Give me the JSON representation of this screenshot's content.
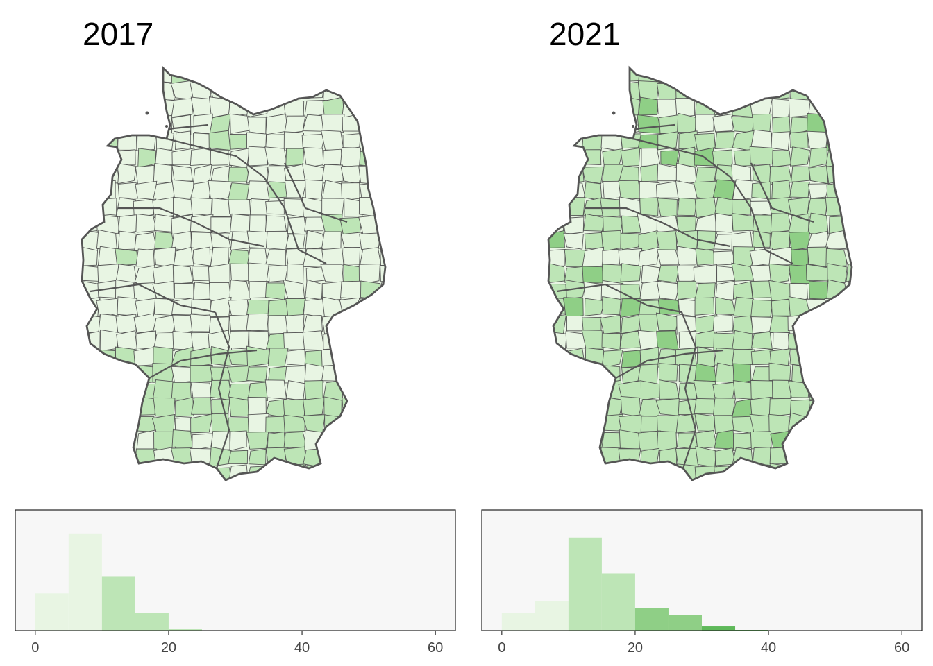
{
  "panels": [
    {
      "title": "2017",
      "chart_data": {
        "type": "bar",
        "bin_edges": [
          0,
          5,
          10,
          15,
          20,
          25
        ],
        "values": [
          54,
          140,
          79,
          26,
          3
        ],
        "colors": [
          "#e8f5e3",
          "#e8f5e3",
          "#bde5b6",
          "#bde5b6",
          "#bde5b6"
        ],
        "xlim": [
          -3,
          63
        ],
        "ylim": [
          0,
          175
        ],
        "xticks": [
          0,
          20,
          40,
          60
        ],
        "xlabel": "",
        "ylabel": ""
      }
    },
    {
      "title": "2021",
      "chart_data": {
        "type": "bar",
        "bin_edges": [
          0,
          5,
          10,
          15,
          20,
          25,
          30,
          35,
          40
        ],
        "values": [
          26,
          43,
          135,
          83,
          33,
          23,
          6,
          1
        ],
        "colors": [
          "#e8f5e3",
          "#e8f5e3",
          "#bde5b6",
          "#bde5b6",
          "#8fcf86",
          "#8fcf86",
          "#5fb95a",
          "#5fb95a"
        ],
        "xlim": [
          -3,
          63
        ],
        "ylim": [
          0,
          175
        ],
        "xticks": [
          0,
          20,
          40,
          60
        ],
        "xlabel": "",
        "ylabel": ""
      }
    }
  ],
  "map": {
    "outline_color": "#555555",
    "fill_light": "#e8f5e3",
    "fill_mid": "#bde5b6",
    "fill_dark": "#8fcf86",
    "histogram_background": "#f7f7f7"
  }
}
